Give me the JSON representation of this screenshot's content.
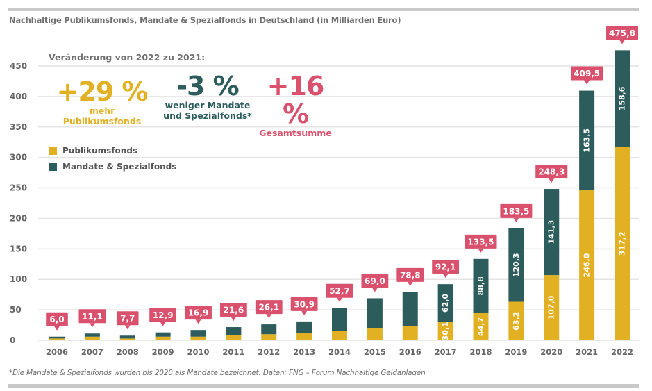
{
  "colors": {
    "publikumsfonds": "#e2b123",
    "mandate": "#2c5c5c",
    "total_label": "#d9516c",
    "grid": "#e4e4e4",
    "text": "#707070"
  },
  "annotation": {
    "heading": "Veränderung von 2022 zu 2021:",
    "items": [
      {
        "value": "+29 %",
        "text1": "mehr Publikumsfonds",
        "text2": "",
        "color": "#e2b123"
      },
      {
        "value": "-3 %",
        "text1": "weniger Mandate",
        "text2": "und Spezialfonds*",
        "color": "#2c5c5c"
      },
      {
        "value": "+16 %",
        "text1": "Gesamtsumme",
        "text2": "",
        "color": "#d9516c"
      }
    ]
  },
  "chart_data": {
    "type": "bar",
    "stacked": true,
    "title": "Nachhaltige Publikumsfonds, Mandate & Spezialfonds in Deutschland (in Milliarden Euro)",
    "footnote": "*Die Mandate & Spezialfonds wurden bis 2020 als Mandate bezeichnet. Daten: FNG – Forum Nachhaltige Geldanlagen",
    "categories": [
      "2006",
      "2007",
      "2008",
      "2009",
      "2010",
      "2011",
      "2012",
      "2013",
      "2014",
      "2015",
      "2016",
      "2017",
      "2018",
      "2019",
      "2020",
      "2021",
      "2022"
    ],
    "series": [
      {
        "name": "Publikumsfonds",
        "values": [
          3,
          6,
          3,
          6,
          6,
          9,
          10,
          12,
          15,
          20,
          23,
          30.1,
          44.7,
          63.2,
          107.0,
          246.0,
          317.2
        ],
        "labels": [
          "",
          "",
          "",
          "",
          "",
          "",
          "",
          "",
          "",
          "",
          "",
          "30,1",
          "44,7",
          "63,2",
          "107,0",
          "246,0",
          "317,2"
        ]
      },
      {
        "name": "Mandate & Spezialfonds",
        "values": [
          3,
          5.1,
          4.7,
          6.9,
          10.9,
          12.6,
          16.1,
          18.9,
          37.7,
          49,
          55.8,
          62.0,
          88.8,
          120.3,
          141.3,
          163.5,
          158.6
        ],
        "labels": [
          "",
          "",
          "",
          "",
          "",
          "",
          "",
          "",
          "",
          "",
          "",
          "62,0",
          "88,8",
          "120,3",
          "141,3",
          "163,5",
          "158,6"
        ]
      }
    ],
    "totals": [
      "6,0",
      "11,1",
      "7,7",
      "12,9",
      "16,9",
      "21,6",
      "26,1",
      "30,9",
      "52,7",
      "69,0",
      "78,8",
      "92,1",
      "133,5",
      "183,5",
      "248,3",
      "409,5",
      "475,8"
    ],
    "yticks": [
      0,
      50,
      100,
      150,
      200,
      250,
      300,
      350,
      400,
      450
    ],
    "ylim": [
      0,
      480
    ],
    "grid": true,
    "legend_position": "top-left"
  }
}
